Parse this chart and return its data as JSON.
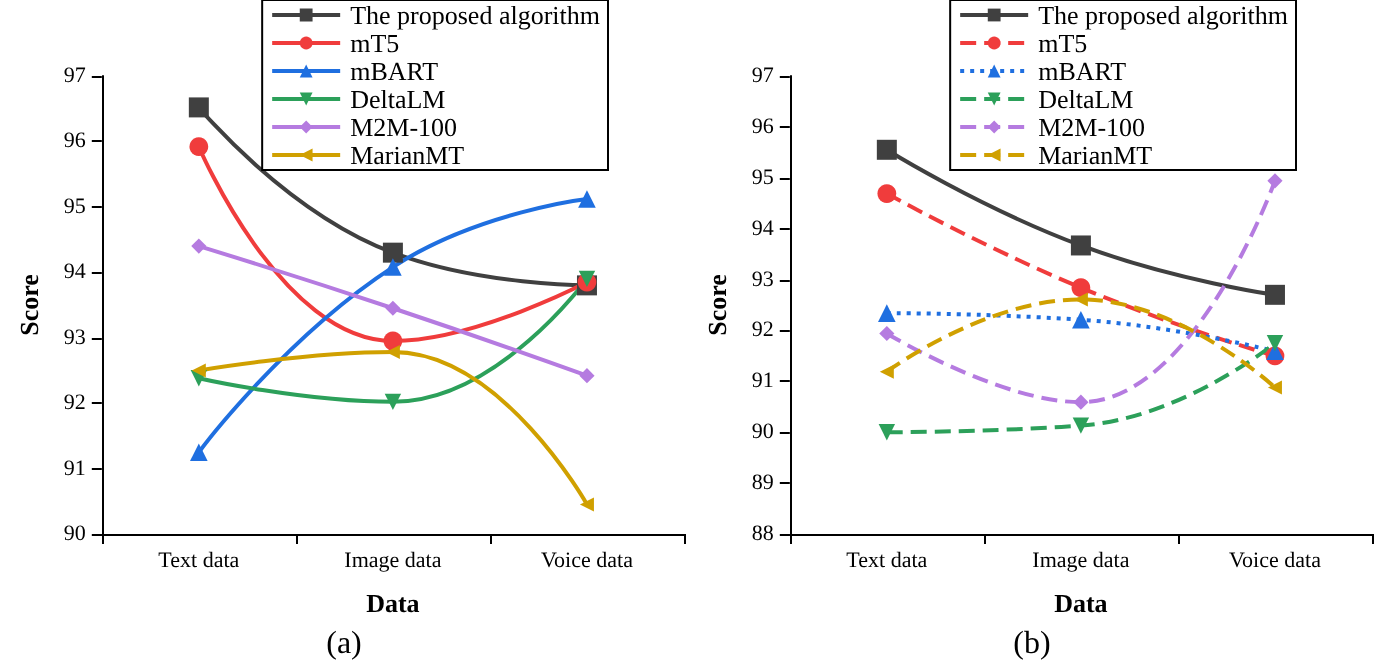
{
  "chart_data": [
    {
      "type": "line",
      "title": "(a)",
      "xlabel": "Data",
      "ylabel": "Score",
      "categories": [
        "Text data",
        "Image data",
        "Voice data"
      ],
      "series": [
        {
          "name": "The proposed algorithm",
          "color": "#404040",
          "marker": "square",
          "line_style": "solid",
          "values": [
            96.52,
            94.3,
            93.8
          ]
        },
        {
          "name": "mT5",
          "color": "#f03c3c",
          "marker": "circle",
          "line_style": "solid",
          "values": [
            95.92,
            92.95,
            93.85
          ]
        },
        {
          "name": "mBART",
          "color": "#1f6fe0",
          "marker": "triangle",
          "line_style": "solid",
          "values": [
            91.25,
            94.08,
            95.12
          ]
        },
        {
          "name": "DeltaLM",
          "color": "#2ca05a",
          "marker": "triangle-down",
          "line_style": "solid",
          "values": [
            92.38,
            92.02,
            93.9
          ]
        },
        {
          "name": "M2M-100",
          "color": "#b57be0",
          "marker": "diamond",
          "line_style": "solid",
          "values": [
            94.4,
            93.45,
            92.42
          ]
        },
        {
          "name": "MarianMT",
          "color": "#d0a000",
          "marker": "triangle-left",
          "line_style": "solid",
          "values": [
            92.5,
            92.78,
            90.45
          ]
        }
      ],
      "ylim": [
        90,
        97
      ],
      "yticks": [
        90,
        91,
        92,
        93,
        94,
        95,
        96,
        97
      ],
      "grid": false,
      "legend": "top right"
    },
    {
      "type": "line",
      "title": "(b)",
      "xlabel": "Data",
      "ylabel": "Score",
      "categories": [
        "Text data",
        "Image data",
        "Voice data"
      ],
      "series": [
        {
          "name": "The proposed algorithm",
          "color": "#404040",
          "marker": "square",
          "line_style": "solid",
          "values": [
            95.55,
            93.67,
            92.7
          ]
        },
        {
          "name": "mT5",
          "color": "#f03c3c",
          "marker": "circle",
          "line_style": "dashed",
          "values": [
            94.69,
            92.84,
            91.5
          ]
        },
        {
          "name": "mBART",
          "color": "#1f6fe0",
          "marker": "triangle",
          "line_style": "dotted",
          "values": [
            92.34,
            92.21,
            91.59
          ]
        },
        {
          "name": "DeltaLM",
          "color": "#2ca05a",
          "marker": "triangle-down",
          "line_style": "dashed",
          "values": [
            90.0,
            90.13,
            91.75
          ]
        },
        {
          "name": "M2M-100",
          "color": "#b57be0",
          "marker": "diamond",
          "line_style": "dashed",
          "values": [
            91.94,
            90.59,
            94.94
          ]
        },
        {
          "name": "MarianMT",
          "color": "#d0a000",
          "marker": "triangle-left",
          "line_style": "dashed",
          "values": [
            91.19,
            92.61,
            90.88
          ]
        }
      ],
      "ylim": [
        88,
        97
      ],
      "yticks": [
        88,
        89,
        90,
        91,
        92,
        93,
        94,
        95,
        96,
        97
      ],
      "grid": false,
      "legend": "top right"
    }
  ]
}
